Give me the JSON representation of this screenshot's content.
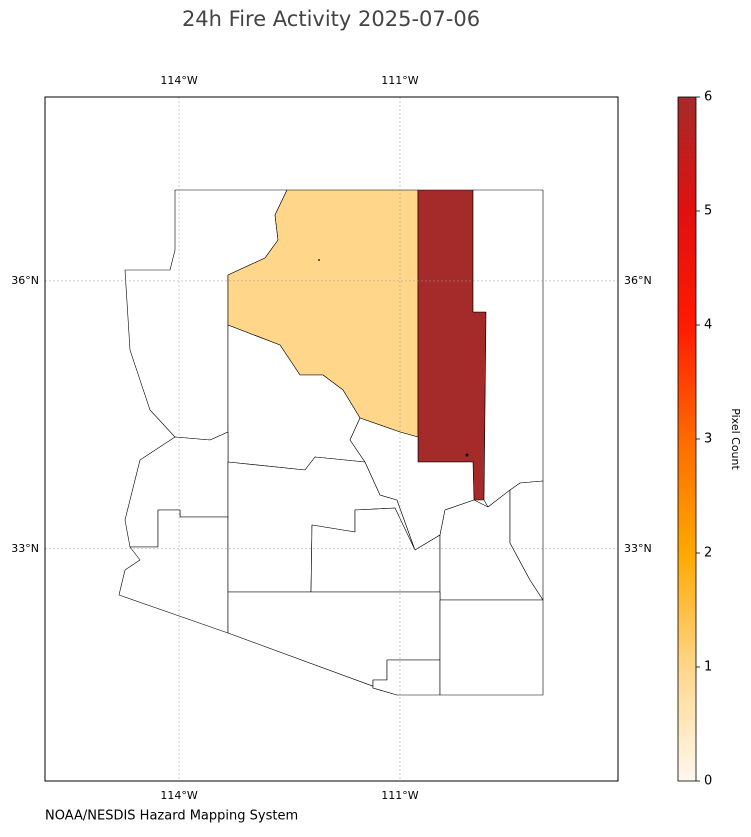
{
  "title": "24h Fire Activity 2025-07-06",
  "footer": "NOAA/NESDIS Hazard Mapping System",
  "map": {
    "lonlim": [
      -115.82,
      -108.04
    ],
    "latlim": [
      30.4,
      38.06
    ],
    "lon_ticks": [
      {
        "value": -114,
        "label": "114°W"
      },
      {
        "value": -111,
        "label": "111°W"
      }
    ],
    "lat_ticks": [
      {
        "value": 36,
        "label": "36°N"
      },
      {
        "value": 33,
        "label": "33°N"
      }
    ],
    "grid": true,
    "region_values": [
      0,
      1,
      6,
      0,
      0,
      0,
      0,
      0,
      0,
      0,
      0,
      0,
      0,
      0,
      0
    ]
  },
  "colorbar": {
    "label": "Pixel Count",
    "lim": [
      0,
      6
    ],
    "ticks": [
      0,
      1,
      2,
      3,
      4,
      5,
      6
    ],
    "colors": [
      "#fff8ee",
      "#ffd68a",
      "#ffa800",
      "#ff6a00",
      "#ff1a00",
      "#e01010",
      "#a52a2a"
    ]
  }
}
